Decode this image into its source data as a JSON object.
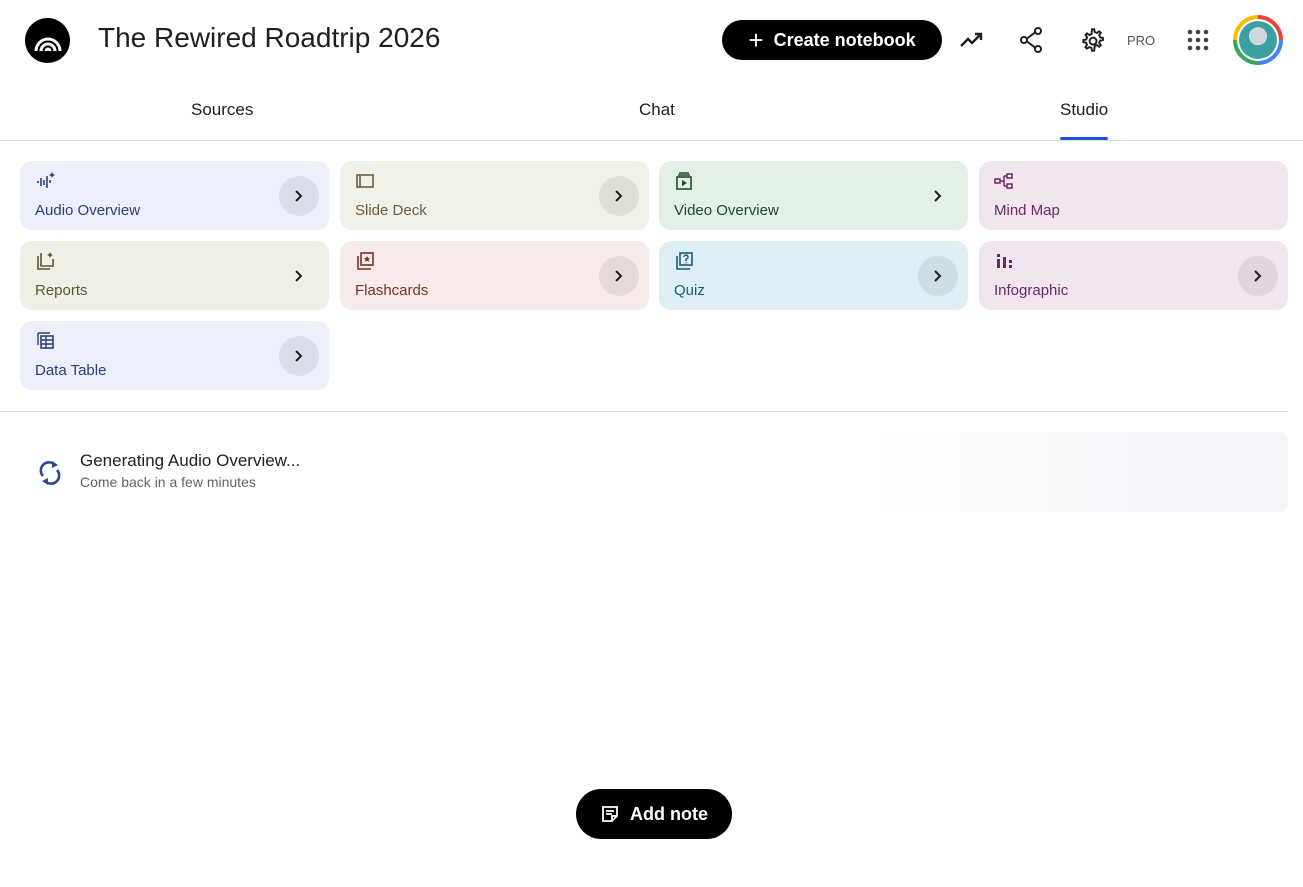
{
  "header": {
    "title": "The Rewired Roadtrip 2026",
    "create_label": "Create notebook",
    "pro_label": "PRO"
  },
  "tabs": [
    {
      "label": "Sources"
    },
    {
      "label": "Chat"
    },
    {
      "label": "Studio",
      "active": true
    }
  ],
  "tiles": [
    {
      "label": "Audio Overview",
      "icon": "audio-waveform-sparkle-icon",
      "bg": "#eceefa",
      "fg": "#2b3f7a"
    },
    {
      "label": "Slide Deck",
      "icon": "slides-icon",
      "bg": "#f1f0e8",
      "fg": "#6b5d3f"
    },
    {
      "label": "Video Overview",
      "icon": "video-icon",
      "bg": "#e2f0e5",
      "fg": "#1e4a2a"
    },
    {
      "label": "Mind Map",
      "icon": "mind-map-icon",
      "bg": "#f1e5ef",
      "fg": "#6b2a63"
    },
    {
      "label": "Reports",
      "icon": "reports-icon",
      "bg": "#f0efe6",
      "fg": "#5f5536"
    },
    {
      "label": "Flashcards",
      "icon": "flashcards-icon",
      "bg": "#f6ebe9",
      "fg": "#7a2f2a"
    },
    {
      "label": "Quiz",
      "icon": "quiz-icon",
      "bg": "#ddeff5",
      "fg": "#1d5a73"
    },
    {
      "label": "Infographic",
      "icon": "infographic-icon",
      "bg": "#f1e5ef",
      "fg": "#6b2a63"
    },
    {
      "label": "Data Table",
      "icon": "table-icon",
      "bg": "#eceefa",
      "fg": "#2b3f7a"
    }
  ],
  "generating": {
    "title": "Generating Audio Overview...",
    "subtitle": "Come back in a few minutes"
  },
  "add_note_label": "Add note",
  "accent": "#1a56d6"
}
